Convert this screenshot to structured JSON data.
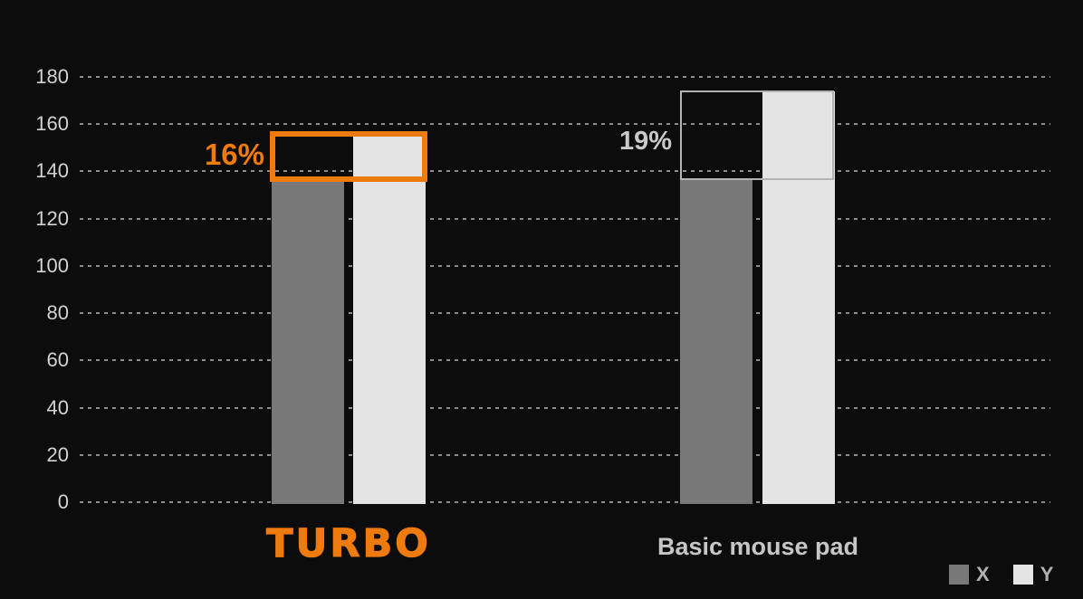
{
  "colors": {
    "background": "#0c0c0c",
    "accent_orange": "#ee7b0e",
    "bar_x": "#787878",
    "bar_y": "#e4e4e4",
    "gridline": "#8c8c8c",
    "tick_label": "#d2d2d2",
    "highlight_box_basic": "#b3b3b3",
    "basic_label": "#c6c6c6",
    "annotation_basic": "#c9c9c9",
    "legend_text": "#b0b0b0"
  },
  "chart_data": {
    "type": "bar",
    "title": "",
    "xlabel": "",
    "ylabel": "",
    "categories": [
      "TURBO",
      "Basic mouse pad"
    ],
    "series": [
      {
        "name": "X",
        "color": "#787878",
        "values": [
          137,
          137
        ]
      },
      {
        "name": "Y",
        "color": "#e4e4e4",
        "values": [
          156,
          174
        ]
      }
    ],
    "annotations": [
      {
        "category": "TURBO",
        "label": "16%",
        "highlight_box_color": "#ee7b0e"
      },
      {
        "category": "Basic mouse pad",
        "label": "19%",
        "highlight_box_color": "#b3b3b3"
      }
    ],
    "ylim": [
      0,
      180
    ],
    "yticks": [
      0,
      20,
      40,
      60,
      80,
      100,
      120,
      140,
      160,
      180
    ],
    "grid": "horizontal-dashed",
    "legend_position": "bottom-right",
    "legend": [
      "X",
      "Y"
    ]
  }
}
